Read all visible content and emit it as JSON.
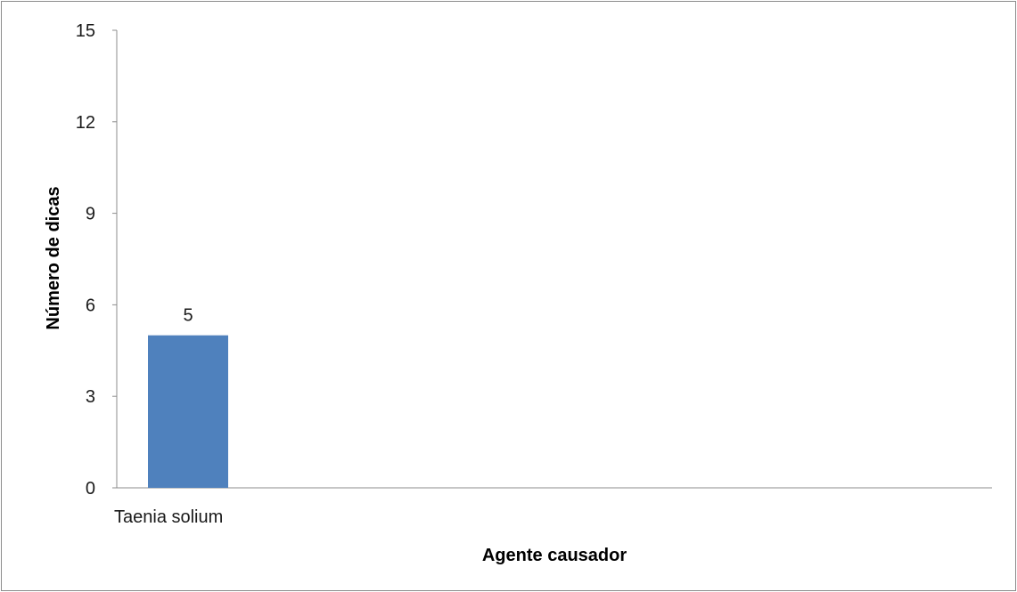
{
  "chart_data": {
    "type": "bar",
    "categories": [
      "Taenia solium"
    ],
    "values": [
      5
    ],
    "data_labels": [
      "5"
    ],
    "xlabel": "Agente causador",
    "ylabel": "Número de dicas",
    "ylim": [
      0,
      15
    ],
    "yticks": [
      "0",
      "3",
      "6",
      "9",
      "12",
      "15"
    ],
    "grid": false,
    "legend": "none",
    "bar_color": "#4f81bd"
  }
}
